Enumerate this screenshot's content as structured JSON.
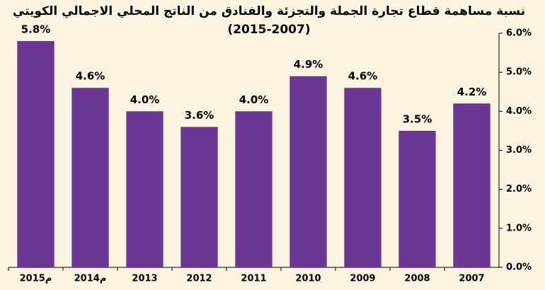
{
  "chart_data": {
    "type": "bar",
    "title": "نسبة مساهمة  قطاع تجارة الجملة والتجزئة والفنادق من الناتج المحلي الاجمالي الكويتي",
    "subtitle": "(2015-2007)",
    "categories": [
      "2015م",
      "2014م",
      "2013",
      "2012",
      "2011",
      "2010",
      "2009",
      "2008",
      "2007"
    ],
    "values": [
      5.8,
      4.6,
      4.0,
      3.6,
      4.0,
      4.9,
      4.6,
      3.5,
      4.2
    ],
    "value_labels": [
      "5.8%",
      "4.6%",
      "4.0%",
      "3.6%",
      "4.0%",
      "4.9%",
      "4.6%",
      "3.5%",
      "4.2%"
    ],
    "color": "#6b3795",
    "ylim": [
      0,
      6
    ],
    "yticks": [
      {
        "value": 0,
        "label": "0.0%"
      },
      {
        "value": 1,
        "label": "1.0%"
      },
      {
        "value": 2,
        "label": "2.0%"
      },
      {
        "value": 3,
        "label": "3.0%"
      },
      {
        "value": 4,
        "label": "4.0%"
      },
      {
        "value": 5,
        "label": "5.0%"
      },
      {
        "value": 6,
        "label": "6.0%"
      }
    ],
    "grid": false
  }
}
